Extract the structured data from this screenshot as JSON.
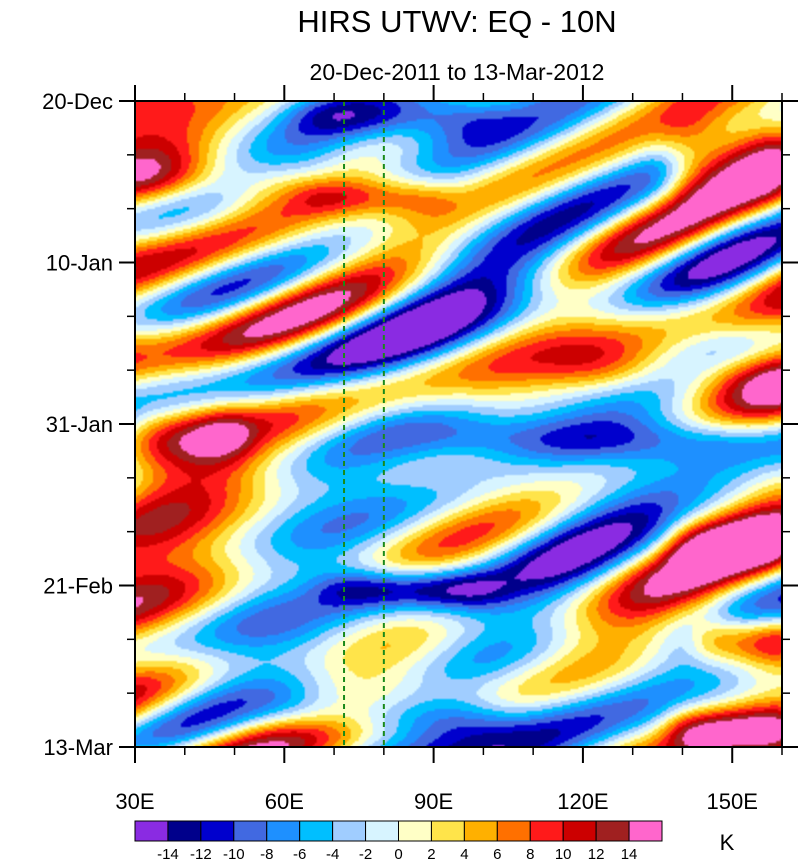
{
  "chart_data": {
    "type": "heatmap",
    "title": "HIRS UTWV: EQ - 10N",
    "subtitle": "20-Dec-2011 to 13-Mar-2012",
    "x_axis": {
      "range": [
        30,
        160
      ],
      "unit": "degrees longitude",
      "ticks": [
        30,
        60,
        90,
        120,
        150
      ],
      "tick_labels": [
        "30E",
        "60E",
        "90E",
        "120E",
        "150E"
      ],
      "minor_ticks": [
        40,
        50,
        70,
        80,
        100,
        110,
        130,
        140,
        160
      ]
    },
    "y_axis": {
      "range_days": [
        0,
        84
      ],
      "direction": "time increases downward",
      "ticks": [
        0,
        21,
        42,
        63,
        84
      ],
      "tick_labels": [
        "20-Dec",
        "10-Jan",
        "31-Jan",
        "21-Feb",
        "13-Mar"
      ],
      "minor_ticks": [
        7,
        14,
        28,
        35,
        49,
        56,
        70,
        77
      ]
    },
    "reference_lines": [
      {
        "x": 72,
        "style": "dashed",
        "color": "#1a8a1a"
      },
      {
        "x": 80,
        "style": "dashed",
        "color": "#1a8a1a"
      }
    ],
    "colorbar": {
      "unit": "K",
      "levels": [
        -14,
        -12,
        -10,
        -8,
        -6,
        -4,
        -2,
        0,
        2,
        4,
        6,
        8,
        10,
        12,
        14
      ],
      "labels": [
        "-14",
        "-12",
        "-10",
        "-8",
        "-6",
        "-4",
        "-2",
        "0",
        "2",
        "4",
        "6",
        "8",
        "10",
        "12",
        "14"
      ],
      "colors": [
        "#8a2be2",
        "#00008b",
        "#0000cd",
        "#4169e1",
        "#1e90ff",
        "#00bfff",
        "#a0cdff",
        "#d7f4ff",
        "#ffffc6",
        "#ffe44a",
        "#ffb000",
        "#ff7000",
        "#ff1a1a",
        "#cc0000",
        "#a02020",
        "#ff66cc"
      ]
    },
    "features": [
      {
        "name": "warm band",
        "x": [
          30,
          60
        ],
        "day": [
          8,
          13
        ],
        "value": 9
      },
      {
        "name": "warm band",
        "x": [
          65,
          90
        ],
        "day": [
          11,
          14
        ],
        "value": 8
      },
      {
        "name": "warm band",
        "x": [
          140,
          160
        ],
        "day": [
          3,
          12
        ],
        "value": 12
      },
      {
        "name": "warm band",
        "x": [
          30,
          50
        ],
        "day": [
          40,
          46
        ],
        "value": 9
      },
      {
        "name": "warm band",
        "x": [
          120,
          160
        ],
        "day": [
          33,
          38
        ],
        "value": 9
      },
      {
        "name": "warm band",
        "x": [
          140,
          160
        ],
        "day": [
          55,
          60
        ],
        "value": 9
      },
      {
        "name": "warm band",
        "x": [
          145,
          160
        ],
        "day": [
          68,
          72
        ],
        "value": 12
      },
      {
        "name": "warm band",
        "x": [
          140,
          160
        ],
        "day": [
          80,
          84
        ],
        "value": 12
      },
      {
        "name": "cold band",
        "x": [
          65,
          100
        ],
        "day": [
          0,
          4
        ],
        "value": -9
      },
      {
        "name": "cold band",
        "x": [
          70,
          100
        ],
        "day": [
          62,
          65
        ],
        "value": -11
      },
      {
        "name": "cold band",
        "x": [
          60,
          100
        ],
        "day": [
          78,
          82
        ],
        "value": -9
      },
      {
        "name": "cold band",
        "x": [
          90,
          160
        ],
        "day": [
          42,
          46
        ],
        "value": -9
      }
    ]
  }
}
